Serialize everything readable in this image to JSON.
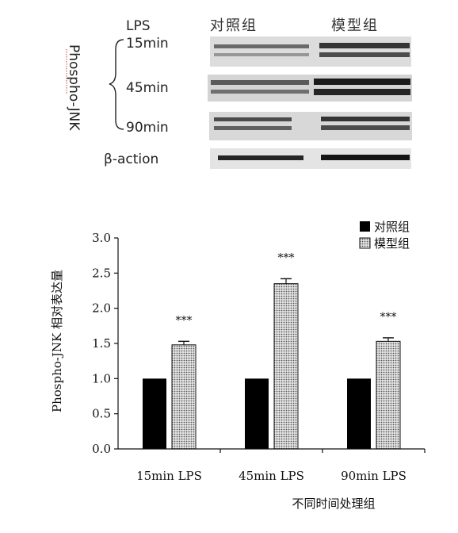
{
  "blot": {
    "treatment_label": "LPS",
    "columns": [
      "对照组",
      "模型组"
    ],
    "protein_label": "Phospho-JNK",
    "time_rows": [
      "15min",
      "45min",
      "90min"
    ],
    "loading_label": "β-action"
  },
  "colors": {
    "control": "#000000",
    "model_fill": "#b9b9b9",
    "axis": "#111111"
  },
  "chart_data": {
    "type": "bar",
    "categories": [
      "15min LPS",
      "45min LPS",
      "90min LPS"
    ],
    "series": [
      {
        "name": "对照组",
        "values": [
          1.0,
          1.0,
          1.0
        ],
        "errors": [
          0,
          0,
          0
        ],
        "pattern": "solid-black"
      },
      {
        "name": "模型组",
        "values": [
          1.48,
          2.35,
          1.53
        ],
        "errors": [
          0.05,
          0.07,
          0.05
        ],
        "pattern": "dotted-gray"
      }
    ],
    "annotations": [
      "***",
      "***",
      "***"
    ],
    "ylabel": "Phospho-JNK 相对表达量",
    "xlabel": "不同时间处理组",
    "ylim": [
      0,
      3.0
    ],
    "yticks": [
      0.0,
      0.5,
      1.0,
      1.5,
      2.0,
      2.5,
      3.0
    ],
    "grid": false,
    "legend_position": "top-right"
  }
}
